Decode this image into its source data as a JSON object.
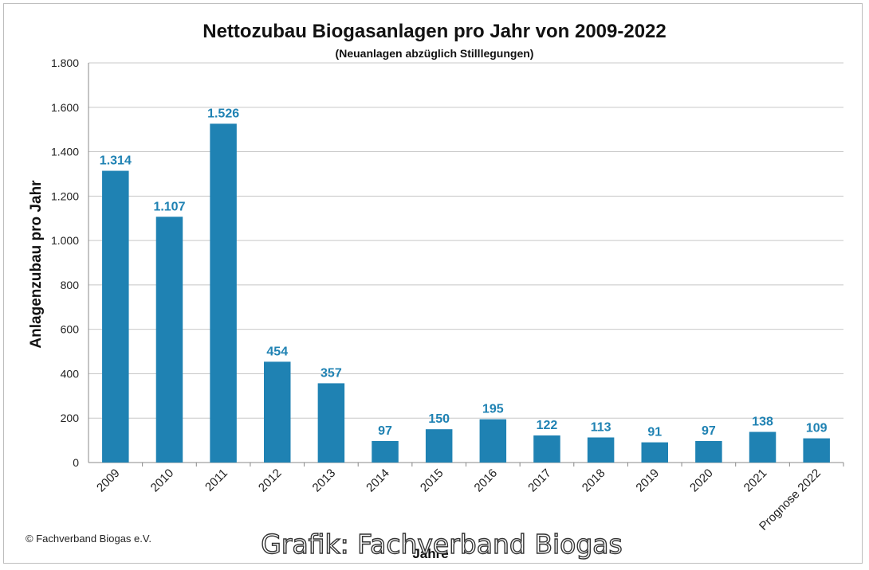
{
  "chart_data": {
    "type": "bar",
    "title": "Nettozubau Biogasanlagen pro Jahr von 2009-2022",
    "subtitle": "(Neuanlagen abzüglich Stilllegungen)",
    "xlabel": "Jahre",
    "ylabel": "Anlagenzubau pro Jahr",
    "categories": [
      "2009",
      "2010",
      "2011",
      "2012",
      "2013",
      "2014",
      "2015",
      "2016",
      "2017",
      "2018",
      "2019",
      "2020",
      "2021",
      "Prognose 2022"
    ],
    "values": [
      1314,
      1107,
      1526,
      454,
      357,
      97,
      150,
      195,
      122,
      113,
      91,
      97,
      138,
      109
    ],
    "value_labels": [
      "1.314",
      "1.107",
      "1.526",
      "454",
      "357",
      "97",
      "150",
      "195",
      "122",
      "113",
      "91",
      "97",
      "138",
      "109"
    ],
    "ylim": [
      0,
      1800
    ],
    "yticks": [
      0,
      200,
      400,
      600,
      800,
      1000,
      1200,
      1400,
      1600,
      1800
    ],
    "ytick_labels": [
      "0",
      "200",
      "400",
      "600",
      "800",
      "1.000",
      "1.200",
      "1.400",
      "1.600",
      "1.800"
    ],
    "grid": true,
    "bar_color": "#1f82b3",
    "label_color": "#1f82b3"
  },
  "copyright": "© Fachverband Biogas e.V.",
  "watermark": "Grafik: Fachverband Biogas"
}
